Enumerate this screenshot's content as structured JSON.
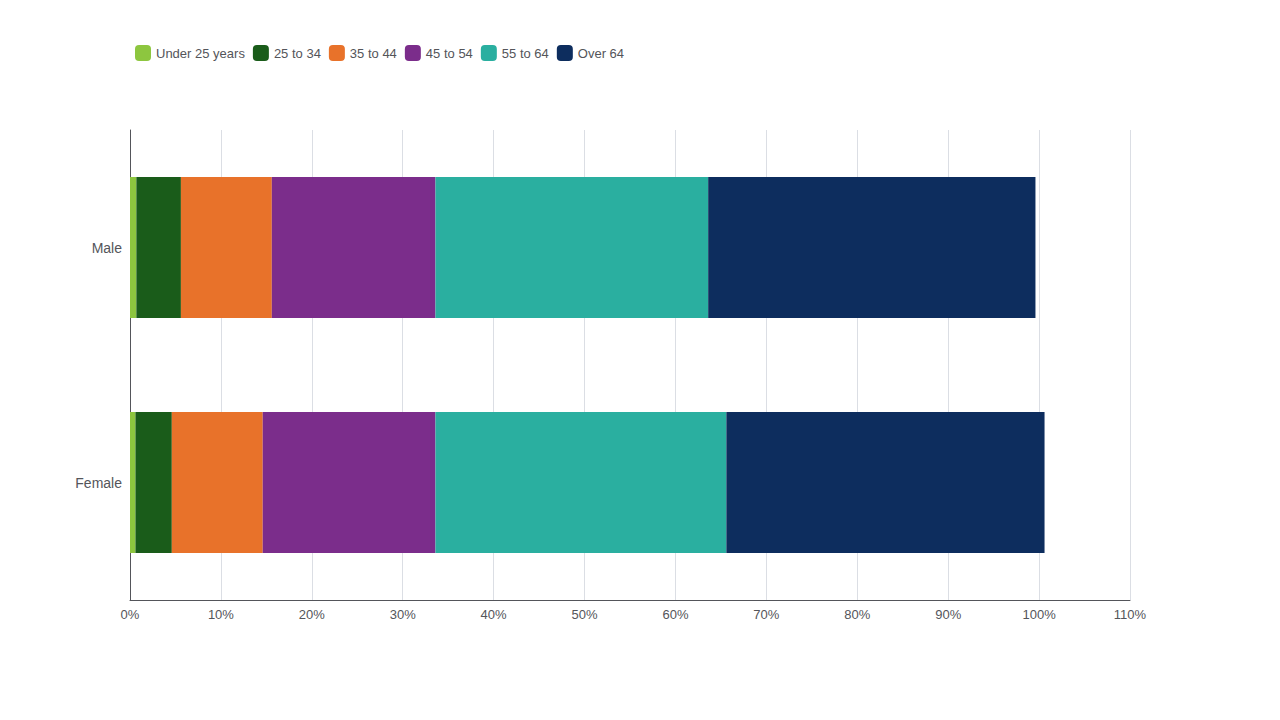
{
  "chart_data": {
    "type": "bar",
    "orientation": "horizontal",
    "stacked": true,
    "categories": [
      "Male",
      "Female"
    ],
    "series": [
      {
        "name": "Under 25 years",
        "color": "#8DC63F",
        "values": [
          0.7,
          0.6
        ]
      },
      {
        "name": "25 to 34",
        "color": "#1A5C1A",
        "values": [
          4.9,
          4.0
        ]
      },
      {
        "name": "35 to 44",
        "color": "#E8722A",
        "values": [
          10.0,
          10.0
        ]
      },
      {
        "name": "45 to 54",
        "color": "#7B2D8B",
        "values": [
          18.0,
          19.0
        ]
      },
      {
        "name": "55 to 64",
        "color": "#2AAFA0",
        "values": [
          30.0,
          32.0
        ]
      },
      {
        "name": "Over 64",
        "color": "#0D2D5E",
        "values": [
          36.0,
          35.0
        ]
      }
    ],
    "xlim": [
      0,
      110
    ],
    "xticks": [
      {
        "value": 0,
        "label": "0%"
      },
      {
        "value": 10,
        "label": "10%"
      },
      {
        "value": 20,
        "label": "20%"
      },
      {
        "value": 30,
        "label": "30%"
      },
      {
        "value": 40,
        "label": "40%"
      },
      {
        "value": 50,
        "label": "50%"
      },
      {
        "value": 60,
        "label": "60%"
      },
      {
        "value": 70,
        "label": "70%"
      },
      {
        "value": 80,
        "label": "80%"
      },
      {
        "value": 90,
        "label": "90%"
      },
      {
        "value": 100,
        "label": "100%"
      },
      {
        "value": 110,
        "label": "110%"
      }
    ],
    "grid": true,
    "legend": "upper left"
  }
}
